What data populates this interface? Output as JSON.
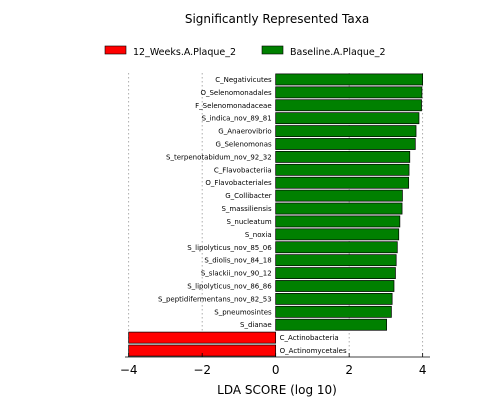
{
  "chart_data": {
    "type": "bar",
    "orientation": "horizontal",
    "title": "Significantly Represented Taxa",
    "xlabel": "LDA SCORE (log 10)",
    "ylabel": "",
    "xlim": [
      -4.1,
      4.2
    ],
    "xticks": [
      -4,
      -2,
      0,
      2,
      4
    ],
    "xtick_labels": [
      "−4",
      "−2",
      "0",
      "2",
      "4"
    ],
    "grid": "vertical-dotted",
    "legend_position": "top",
    "legend": [
      {
        "name": "12_Weeks.A.Plaque_2",
        "color": "#ff0000"
      },
      {
        "name": "Baseline.A.Plaque_2",
        "color": "#008000"
      }
    ],
    "categories": [
      "C_Negativicutes",
      "O_Selenomonadales",
      "F_Selenomonadaceae",
      "S_indica_nov_89_81",
      "G_Anaerovibrio",
      "G_Selenomonas",
      "S_terpenotabidum_nov_92_32",
      "C_Flavobacteriia",
      "O_Flavobacteriales",
      "G_Collibacter",
      "S_massiliensis",
      "S_nucleatum",
      "S_noxia",
      "S_lipolyticus_nov_85_06",
      "S_diolis_nov_84_18",
      "S_slackii_nov_90_12",
      "S_lipolyticus_nov_86_86",
      "S_peptidifermentans_nov_82_53",
      "S_pneumosintes",
      "S_dianae",
      "C_Actinobacteria",
      "O_Actinomycetales"
    ],
    "values": [
      4.0,
      3.98,
      3.97,
      3.9,
      3.82,
      3.8,
      3.65,
      3.63,
      3.62,
      3.45,
      3.44,
      3.38,
      3.35,
      3.31,
      3.28,
      3.26,
      3.22,
      3.17,
      3.15,
      3.02,
      -4.0,
      -4.0
    ],
    "groups": [
      "Baseline.A.Plaque_2",
      "Baseline.A.Plaque_2",
      "Baseline.A.Plaque_2",
      "Baseline.A.Plaque_2",
      "Baseline.A.Plaque_2",
      "Baseline.A.Plaque_2",
      "Baseline.A.Plaque_2",
      "Baseline.A.Plaque_2",
      "Baseline.A.Plaque_2",
      "Baseline.A.Plaque_2",
      "Baseline.A.Plaque_2",
      "Baseline.A.Plaque_2",
      "Baseline.A.Plaque_2",
      "Baseline.A.Plaque_2",
      "Baseline.A.Plaque_2",
      "Baseline.A.Plaque_2",
      "Baseline.A.Plaque_2",
      "Baseline.A.Plaque_2",
      "Baseline.A.Plaque_2",
      "Baseline.A.Plaque_2",
      "12_Weeks.A.Plaque_2",
      "12_Weeks.A.Plaque_2"
    ]
  }
}
